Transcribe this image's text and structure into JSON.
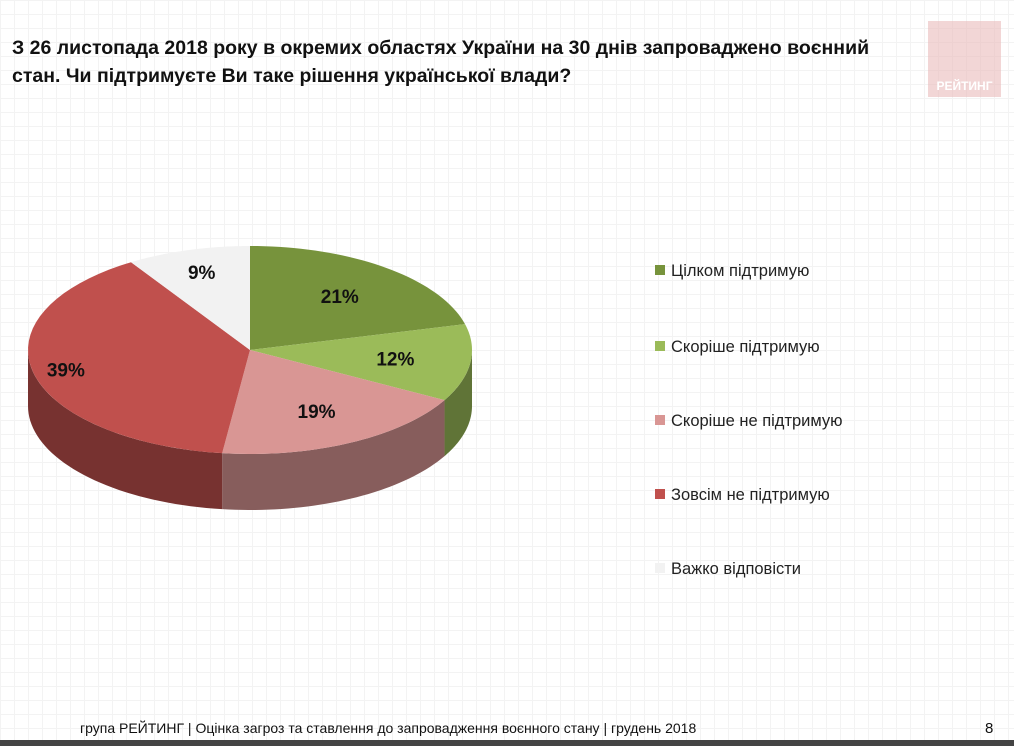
{
  "title": "З 26 листопада 2018 року в окремих областях України на 30 днів запроваджено воєнний стан. Чи підтримуєте Ви таке рішення української влади?",
  "logo": "РЕЙТИНГ",
  "footer": "група РЕЙТИНГ | Оцінка загроз та ставлення до запровадження воєнного стану | грудень 2018",
  "page_number": "8",
  "chart_data": {
    "type": "pie",
    "style": "3d",
    "categories": [
      "Цілком підтримую",
      "Скоріше підтримую",
      "Скоріше  не підтримую",
      "Зовсім не підтримую",
      "Важко відповісти"
    ],
    "values": [
      21,
      12,
      19,
      39,
      9
    ],
    "labels": [
      "21%",
      "12%",
      "19%",
      "39%",
      "9%"
    ],
    "colors": [
      "#77933c",
      "#9bbb59",
      "#d99694",
      "#c0504d",
      "#f2f2f2"
    ],
    "legend_placement": "right"
  }
}
